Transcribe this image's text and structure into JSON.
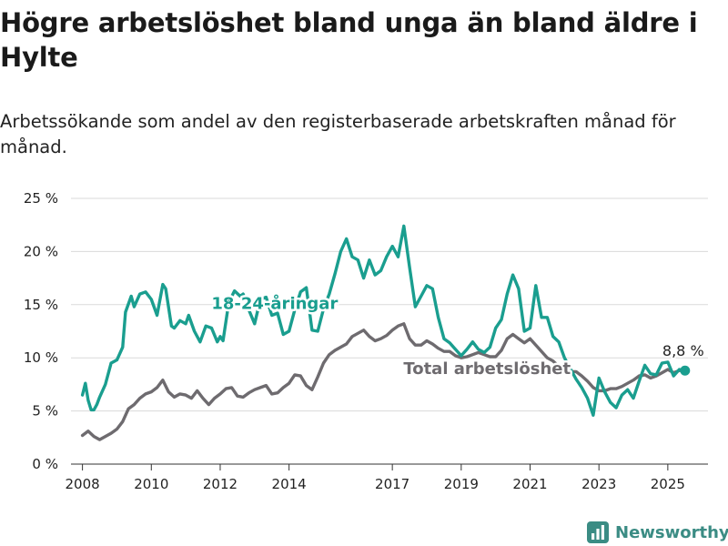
{
  "title": "Högre arbetslöshet bland unga än bland äldre i Hylte",
  "subtitle": "Arbetssökande som andel av den registerbaserade arbetskraften månad för månad.",
  "brand": {
    "name": "Newsworthy",
    "color": "#3b8c84"
  },
  "chart_data": {
    "type": "line",
    "title": "Högre arbetslöshet bland unga än bland äldre i Hylte",
    "subtitle": "Arbetssökande som andel av den registerbaserade arbetskraften månad för månad.",
    "xlabel": "",
    "ylabel": "",
    "ylim": [
      0,
      25
    ],
    "xlim": [
      "2007-09",
      "2026-03"
    ],
    "yticks": [
      0,
      5,
      10,
      15,
      20,
      25
    ],
    "ytick_labels": [
      "0 %",
      "5 %",
      "10 %",
      "15 %",
      "20 %",
      "25 %"
    ],
    "xtick_labels": [
      "2008",
      "2010",
      "2012",
      "2014",
      "2017",
      "2019",
      "2021",
      "2023",
      "2025"
    ],
    "grid": true,
    "legend": "inline labels",
    "series": [
      {
        "name": "18-24-åringar",
        "color": "#1a9e8f",
        "label_position": [
          "2013-08",
          15.1
        ],
        "points": [
          [
            "2008-01",
            6.5
          ],
          [
            "2008-02",
            7.6
          ],
          [
            "2008-03",
            6.0
          ],
          [
            "2008-04",
            5.1
          ],
          [
            "2008-05",
            5.1
          ],
          [
            "2008-06",
            5.6
          ],
          [
            "2008-07",
            6.3
          ],
          [
            "2008-09",
            7.5
          ],
          [
            "2008-11",
            9.5
          ],
          [
            "2009-01",
            9.8
          ],
          [
            "2009-03",
            11.0
          ],
          [
            "2009-04",
            14.3
          ],
          [
            "2009-06",
            15.8
          ],
          [
            "2009-07",
            14.8
          ],
          [
            "2009-09",
            16.0
          ],
          [
            "2009-11",
            16.2
          ],
          [
            "2010-01",
            15.5
          ],
          [
            "2010-03",
            14.0
          ],
          [
            "2010-05",
            16.9
          ],
          [
            "2010-06",
            16.5
          ],
          [
            "2010-08",
            13.0
          ],
          [
            "2010-09",
            12.8
          ],
          [
            "2010-11",
            13.5
          ],
          [
            "2011-01",
            13.2
          ],
          [
            "2011-02",
            14.0
          ],
          [
            "2011-04",
            12.5
          ],
          [
            "2011-06",
            11.5
          ],
          [
            "2011-08",
            13.0
          ],
          [
            "2011-10",
            12.8
          ],
          [
            "2011-12",
            11.5
          ],
          [
            "2012-01",
            12.0
          ],
          [
            "2012-02",
            11.6
          ],
          [
            "2012-04",
            15.2
          ],
          [
            "2012-06",
            16.3
          ],
          [
            "2012-08",
            15.8
          ],
          [
            "2012-09",
            16.0
          ],
          [
            "2012-11",
            14.5
          ],
          [
            "2013-01",
            13.2
          ],
          [
            "2013-03",
            15.5
          ],
          [
            "2013-05",
            15.7
          ],
          [
            "2013-07",
            14.0
          ],
          [
            "2013-09",
            14.2
          ],
          [
            "2013-11",
            12.2
          ],
          [
            "2014-01",
            12.5
          ],
          [
            "2014-03",
            14.5
          ],
          [
            "2014-05",
            16.2
          ],
          [
            "2014-07",
            16.6
          ],
          [
            "2014-09",
            12.6
          ],
          [
            "2014-11",
            12.5
          ],
          [
            "2015-01",
            14.6
          ],
          [
            "2015-03",
            16.0
          ],
          [
            "2015-05",
            17.9
          ],
          [
            "2015-07",
            20.0
          ],
          [
            "2015-09",
            21.2
          ],
          [
            "2015-11",
            19.5
          ],
          [
            "2016-01",
            19.2
          ],
          [
            "2016-03",
            17.5
          ],
          [
            "2016-05",
            19.2
          ],
          [
            "2016-07",
            17.8
          ],
          [
            "2016-09",
            18.2
          ],
          [
            "2016-11",
            19.5
          ],
          [
            "2017-01",
            20.5
          ],
          [
            "2017-03",
            19.5
          ],
          [
            "2017-05",
            22.4
          ],
          [
            "2017-07",
            18.5
          ],
          [
            "2017-09",
            14.8
          ],
          [
            "2017-11",
            15.8
          ],
          [
            "2018-01",
            16.8
          ],
          [
            "2018-03",
            16.5
          ],
          [
            "2018-05",
            13.8
          ],
          [
            "2018-07",
            11.8
          ],
          [
            "2018-09",
            11.4
          ],
          [
            "2018-11",
            10.8
          ],
          [
            "2019-01",
            10.2
          ],
          [
            "2019-03",
            10.8
          ],
          [
            "2019-05",
            11.5
          ],
          [
            "2019-07",
            10.8
          ],
          [
            "2019-09",
            10.5
          ],
          [
            "2019-11",
            11.0
          ],
          [
            "2020-01",
            12.8
          ],
          [
            "2020-03",
            13.6
          ],
          [
            "2020-05",
            16.0
          ],
          [
            "2020-07",
            17.8
          ],
          [
            "2020-09",
            16.5
          ],
          [
            "2020-11",
            12.5
          ],
          [
            "2021-01",
            12.8
          ],
          [
            "2021-03",
            16.8
          ],
          [
            "2021-05",
            13.8
          ],
          [
            "2021-07",
            13.8
          ],
          [
            "2021-09",
            12.0
          ],
          [
            "2021-11",
            11.5
          ],
          [
            "2022-01",
            10.0
          ],
          [
            "2022-03",
            9.0
          ],
          [
            "2022-05",
            8.0
          ],
          [
            "2022-07",
            7.2
          ],
          [
            "2022-09",
            6.2
          ],
          [
            "2022-11",
            4.6
          ],
          [
            "2023-01",
            8.1
          ],
          [
            "2023-03",
            6.8
          ],
          [
            "2023-05",
            5.8
          ],
          [
            "2023-07",
            5.3
          ],
          [
            "2023-09",
            6.5
          ],
          [
            "2023-11",
            7.0
          ],
          [
            "2024-01",
            6.2
          ],
          [
            "2024-03",
            7.8
          ],
          [
            "2024-05",
            9.3
          ],
          [
            "2024-07",
            8.5
          ],
          [
            "2024-09",
            8.4
          ],
          [
            "2024-11",
            9.5
          ],
          [
            "2025-01",
            9.6
          ],
          [
            "2025-03",
            8.3
          ],
          [
            "2025-05",
            8.9
          ],
          [
            "2025-07",
            8.8
          ]
        ]
      },
      {
        "name": "Total arbetslöshet",
        "color": "#6e6b6f",
        "label_position": [
          "2019-10",
          9.0
        ],
        "points": [
          [
            "2008-01",
            2.7
          ],
          [
            "2008-03",
            3.1
          ],
          [
            "2008-05",
            2.6
          ],
          [
            "2008-07",
            2.3
          ],
          [
            "2008-09",
            2.6
          ],
          [
            "2008-11",
            2.9
          ],
          [
            "2009-01",
            3.3
          ],
          [
            "2009-03",
            4.0
          ],
          [
            "2009-05",
            5.2
          ],
          [
            "2009-07",
            5.6
          ],
          [
            "2009-09",
            6.2
          ],
          [
            "2009-11",
            6.6
          ],
          [
            "2010-01",
            6.8
          ],
          [
            "2010-03",
            7.2
          ],
          [
            "2010-05",
            7.9
          ],
          [
            "2010-07",
            6.8
          ],
          [
            "2010-09",
            6.3
          ],
          [
            "2010-11",
            6.6
          ],
          [
            "2011-01",
            6.5
          ],
          [
            "2011-03",
            6.2
          ],
          [
            "2011-05",
            6.9
          ],
          [
            "2011-07",
            6.2
          ],
          [
            "2011-09",
            5.6
          ],
          [
            "2011-11",
            6.2
          ],
          [
            "2012-01",
            6.6
          ],
          [
            "2012-03",
            7.1
          ],
          [
            "2012-05",
            7.2
          ],
          [
            "2012-07",
            6.4
          ],
          [
            "2012-09",
            6.3
          ],
          [
            "2012-11",
            6.7
          ],
          [
            "2013-01",
            7.0
          ],
          [
            "2013-03",
            7.2
          ],
          [
            "2013-05",
            7.4
          ],
          [
            "2013-07",
            6.6
          ],
          [
            "2013-09",
            6.7
          ],
          [
            "2013-11",
            7.2
          ],
          [
            "2014-01",
            7.6
          ],
          [
            "2014-03",
            8.4
          ],
          [
            "2014-05",
            8.3
          ],
          [
            "2014-07",
            7.4
          ],
          [
            "2014-09",
            7.0
          ],
          [
            "2014-11",
            8.2
          ],
          [
            "2015-01",
            9.5
          ],
          [
            "2015-03",
            10.3
          ],
          [
            "2015-05",
            10.7
          ],
          [
            "2015-07",
            11.0
          ],
          [
            "2015-09",
            11.3
          ],
          [
            "2015-11",
            12.0
          ],
          [
            "2016-01",
            12.3
          ],
          [
            "2016-03",
            12.6
          ],
          [
            "2016-05",
            12.0
          ],
          [
            "2016-07",
            11.6
          ],
          [
            "2016-09",
            11.8
          ],
          [
            "2016-11",
            12.1
          ],
          [
            "2017-01",
            12.6
          ],
          [
            "2017-03",
            13.0
          ],
          [
            "2017-05",
            13.2
          ],
          [
            "2017-07",
            11.8
          ],
          [
            "2017-09",
            11.2
          ],
          [
            "2017-11",
            11.2
          ],
          [
            "2018-01",
            11.6
          ],
          [
            "2018-03",
            11.3
          ],
          [
            "2018-05",
            10.9
          ],
          [
            "2018-07",
            10.6
          ],
          [
            "2018-09",
            10.6
          ],
          [
            "2018-11",
            10.2
          ],
          [
            "2019-01",
            10.0
          ],
          [
            "2019-03",
            10.1
          ],
          [
            "2019-05",
            10.3
          ],
          [
            "2019-07",
            10.5
          ],
          [
            "2019-09",
            10.3
          ],
          [
            "2019-11",
            10.1
          ],
          [
            "2020-01",
            10.1
          ],
          [
            "2020-03",
            10.7
          ],
          [
            "2020-05",
            11.8
          ],
          [
            "2020-07",
            12.2
          ],
          [
            "2020-09",
            11.8
          ],
          [
            "2020-11",
            11.4
          ],
          [
            "2021-01",
            11.8
          ],
          [
            "2021-03",
            11.2
          ],
          [
            "2021-05",
            10.6
          ],
          [
            "2021-07",
            10.0
          ],
          [
            "2021-09",
            9.7
          ],
          [
            "2021-11",
            9.2
          ],
          [
            "2022-01",
            9.0
          ],
          [
            "2022-03",
            8.7
          ],
          [
            "2022-05",
            8.7
          ],
          [
            "2022-07",
            8.3
          ],
          [
            "2022-09",
            7.8
          ],
          [
            "2022-11",
            7.2
          ],
          [
            "2023-01",
            6.9
          ],
          [
            "2023-03",
            6.9
          ],
          [
            "2023-05",
            7.1
          ],
          [
            "2023-07",
            7.1
          ],
          [
            "2023-09",
            7.3
          ],
          [
            "2023-11",
            7.6
          ],
          [
            "2024-01",
            7.9
          ],
          [
            "2024-03",
            8.3
          ],
          [
            "2024-05",
            8.4
          ],
          [
            "2024-07",
            8.1
          ],
          [
            "2024-09",
            8.3
          ],
          [
            "2024-11",
            8.6
          ],
          [
            "2025-01",
            8.9
          ],
          [
            "2025-03",
            8.6
          ],
          [
            "2025-05",
            8.8
          ],
          [
            "2025-07",
            8.8
          ]
        ]
      }
    ],
    "annotations": [
      {
        "text": "8,8 %",
        "x": "2025-07",
        "y": 8.8,
        "series": "18-24-åringar"
      }
    ]
  }
}
